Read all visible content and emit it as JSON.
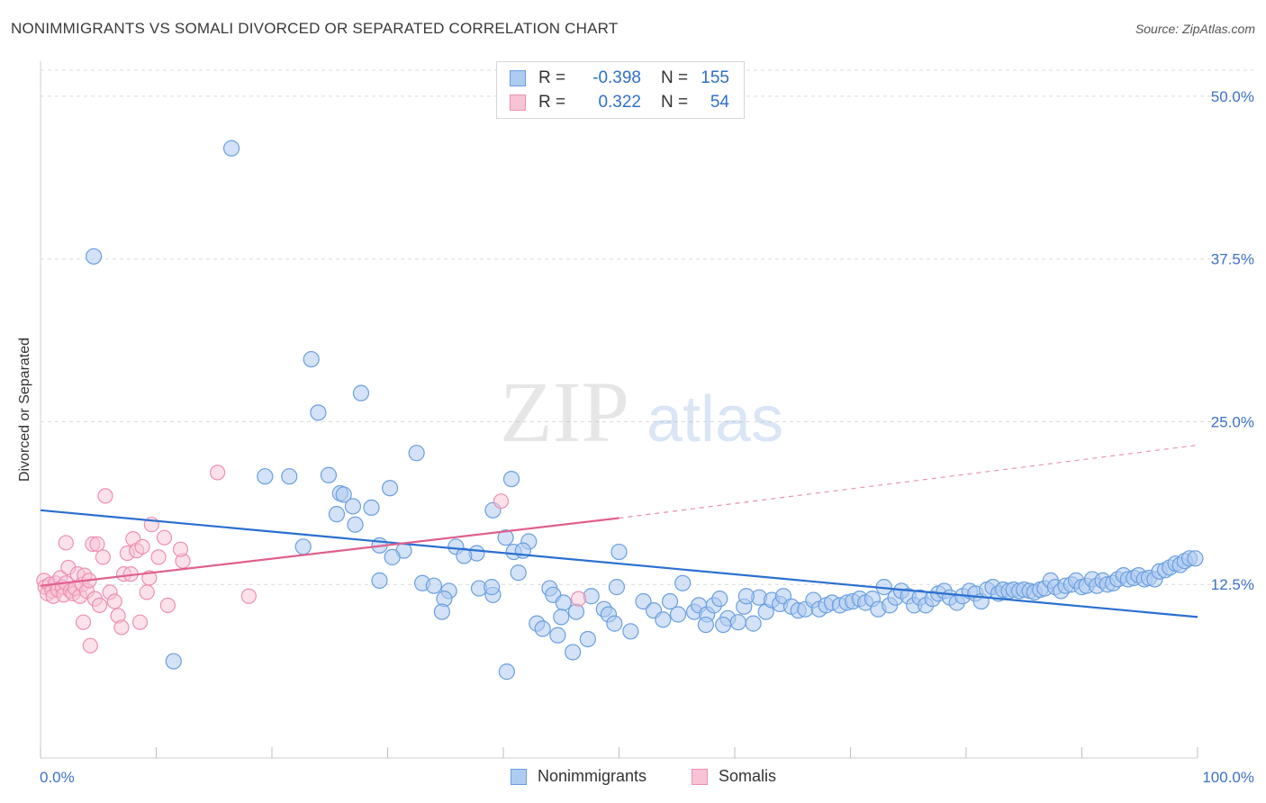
{
  "title": "NONIMMIGRANTS VS SOMALI DIVORCED OR SEPARATED CORRELATION CHART",
  "source": "Source: ZipAtlas.com",
  "watermark": {
    "zip": "ZIP",
    "atlas": "atlas"
  },
  "colors": {
    "blue": "#6a9fe0",
    "blue_fill": "#aecbf1",
    "blue_line": "#2b6fd1",
    "pink": "#ef8fb0",
    "pink_fill": "#f7c3d5",
    "pink_line": "#e0608e",
    "tick_label": "#3d72c7"
  },
  "stats": {
    "r_label": "R =",
    "n_label": "N =",
    "rows": [
      {
        "r": "-0.398",
        "n": "155"
      },
      {
        "r": "0.322",
        "n": "54"
      }
    ]
  },
  "chart_data": {
    "type": "scatter",
    "title": "NONIMMIGRANTS VS SOMALI DIVORCED OR SEPARATED CORRELATION CHART",
    "xlabel": "",
    "ylabel": "Divorced or Separated",
    "xlim": [
      0,
      100
    ],
    "ylim": [
      0,
      52
    ],
    "x_tick_labels": [
      "0.0%",
      "100.0%"
    ],
    "y_ticks": [
      12.5,
      25.0,
      37.5,
      50.0
    ],
    "y_tick_labels": [
      "12.5%",
      "25.0%",
      "37.5%",
      "50.0%"
    ],
    "grid": true,
    "legend_placement": "bottom-center",
    "series": [
      {
        "name": "Nonimmigrants",
        "color": "#6a9fe0",
        "trend": {
          "x0": 0,
          "y0": 18.2,
          "x1": 100,
          "y1": 10.0
        },
        "points": [
          [
            16.5,
            46
          ],
          [
            4.6,
            37.7
          ],
          [
            23.4,
            29.8
          ],
          [
            27.7,
            27.2
          ],
          [
            24.0,
            25.7
          ],
          [
            32.5,
            22.6
          ],
          [
            40.7,
            20.6
          ],
          [
            19.4,
            20.8
          ],
          [
            21.5,
            20.8
          ],
          [
            24.9,
            20.9
          ],
          [
            25.9,
            19.5
          ],
          [
            26.2,
            19.4
          ],
          [
            30.2,
            19.9
          ],
          [
            27.0,
            18.5
          ],
          [
            28.6,
            18.4
          ],
          [
            25.6,
            17.9
          ],
          [
            39.1,
            18.2
          ],
          [
            27.2,
            17.1
          ],
          [
            40.2,
            16.1
          ],
          [
            42.2,
            15.8
          ],
          [
            22.7,
            15.4
          ],
          [
            29.3,
            15.5
          ],
          [
            31.4,
            15.1
          ],
          [
            35.9,
            15.4
          ],
          [
            37.7,
            14.9
          ],
          [
            40.9,
            15.0
          ],
          [
            41.7,
            15.1
          ],
          [
            50.0,
            15.0
          ],
          [
            30.4,
            14.6
          ],
          [
            36.6,
            14.7
          ],
          [
            41.3,
            13.4
          ],
          [
            29.3,
            12.8
          ],
          [
            33.0,
            12.6
          ],
          [
            34.0,
            12.4
          ],
          [
            35.3,
            12.0
          ],
          [
            37.9,
            12.2
          ],
          [
            39.1,
            11.7
          ],
          [
            34.9,
            11.4
          ],
          [
            34.7,
            10.4
          ],
          [
            44.0,
            12.2
          ],
          [
            44.3,
            11.7
          ],
          [
            45.2,
            11.1
          ],
          [
            47.6,
            11.6
          ],
          [
            48.7,
            10.6
          ],
          [
            46.3,
            10.4
          ],
          [
            49.1,
            10.2
          ],
          [
            42.9,
            9.5
          ],
          [
            43.4,
            9.1
          ],
          [
            44.7,
            8.6
          ],
          [
            47.3,
            8.3
          ],
          [
            49.6,
            9.5
          ],
          [
            51.0,
            8.9
          ],
          [
            49.8,
            12.3
          ],
          [
            52.1,
            11.2
          ],
          [
            53.0,
            10.5
          ],
          [
            53.8,
            9.8
          ],
          [
            54.4,
            11.2
          ],
          [
            55.1,
            10.2
          ],
          [
            55.5,
            12.6
          ],
          [
            56.5,
            10.4
          ],
          [
            56.9,
            10.9
          ],
          [
            57.6,
            10.2
          ],
          [
            58.2,
            10.9
          ],
          [
            58.7,
            11.4
          ],
          [
            59.4,
            9.9
          ],
          [
            60.3,
            9.6
          ],
          [
            60.8,
            10.8
          ],
          [
            61.6,
            9.5
          ],
          [
            62.1,
            11.5
          ],
          [
            62.7,
            10.4
          ],
          [
            63.2,
            11.3
          ],
          [
            63.9,
            11.0
          ],
          [
            64.2,
            11.6
          ],
          [
            64.9,
            10.8
          ],
          [
            65.5,
            10.5
          ],
          [
            66.1,
            10.6
          ],
          [
            66.8,
            11.3
          ],
          [
            67.3,
            10.6
          ],
          [
            67.9,
            10.9
          ],
          [
            68.4,
            11.1
          ],
          [
            69.1,
            10.9
          ],
          [
            69.7,
            11.1
          ],
          [
            70.2,
            11.2
          ],
          [
            70.8,
            11.4
          ],
          [
            71.3,
            11.1
          ],
          [
            71.9,
            11.4
          ],
          [
            72.4,
            10.6
          ],
          [
            72.9,
            12.3
          ],
          [
            73.4,
            10.9
          ],
          [
            73.9,
            11.5
          ],
          [
            74.4,
            12.0
          ],
          [
            75.0,
            11.6
          ],
          [
            75.5,
            10.9
          ],
          [
            76.0,
            11.5
          ],
          [
            76.5,
            10.9
          ],
          [
            77.1,
            11.4
          ],
          [
            77.6,
            11.8
          ],
          [
            78.1,
            12.0
          ],
          [
            78.6,
            11.5
          ],
          [
            79.2,
            11.1
          ],
          [
            79.7,
            11.6
          ],
          [
            80.3,
            12.0
          ],
          [
            80.8,
            11.8
          ],
          [
            81.3,
            11.2
          ],
          [
            81.8,
            12.1
          ],
          [
            82.3,
            12.3
          ],
          [
            82.8,
            11.8
          ],
          [
            83.2,
            12.1
          ],
          [
            83.7,
            12.0
          ],
          [
            84.1,
            12.1
          ],
          [
            84.6,
            12.0
          ],
          [
            85.0,
            12.1
          ],
          [
            85.5,
            12.0
          ],
          [
            85.9,
            11.9
          ],
          [
            86.4,
            12.1
          ],
          [
            86.8,
            12.2
          ],
          [
            87.3,
            12.8
          ],
          [
            87.7,
            12.3
          ],
          [
            88.2,
            12.0
          ],
          [
            88.6,
            12.4
          ],
          [
            89.1,
            12.5
          ],
          [
            89.5,
            12.8
          ],
          [
            90.0,
            12.3
          ],
          [
            90.4,
            12.4
          ],
          [
            90.9,
            12.9
          ],
          [
            91.3,
            12.4
          ],
          [
            91.8,
            12.8
          ],
          [
            92.2,
            12.5
          ],
          [
            92.7,
            12.6
          ],
          [
            93.1,
            12.9
          ],
          [
            93.6,
            13.2
          ],
          [
            94.0,
            12.9
          ],
          [
            94.5,
            13.0
          ],
          [
            94.9,
            13.2
          ],
          [
            95.4,
            12.9
          ],
          [
            95.8,
            13.0
          ],
          [
            96.3,
            12.9
          ],
          [
            96.7,
            13.5
          ],
          [
            97.2,
            13.6
          ],
          [
            97.6,
            13.8
          ],
          [
            98.1,
            14.1
          ],
          [
            98.5,
            14.0
          ],
          [
            98.9,
            14.3
          ],
          [
            99.3,
            14.5
          ],
          [
            99.8,
            14.5
          ],
          [
            11.5,
            6.6
          ],
          [
            40.3,
            5.8
          ],
          [
            46.0,
            7.3
          ],
          [
            45.0,
            10.0
          ],
          [
            39.0,
            12.3
          ],
          [
            57.5,
            9.4
          ],
          [
            59.0,
            9.4
          ],
          [
            61.0,
            11.6
          ]
        ]
      },
      {
        "name": "Somalis",
        "color": "#ef8fb0",
        "trend": {
          "x0": 0,
          "y0": 12.4,
          "x1": 50,
          "y1": 17.6,
          "dashed_to_x": 100,
          "dashed_to_y": 23.2
        },
        "points": [
          [
            0.3,
            12.8
          ],
          [
            0.4,
            12.3
          ],
          [
            0.6,
            11.8
          ],
          [
            0.8,
            12.5
          ],
          [
            1.0,
            12.0
          ],
          [
            1.1,
            11.6
          ],
          [
            1.3,
            12.6
          ],
          [
            1.5,
            12.1
          ],
          [
            1.7,
            13.0
          ],
          [
            1.9,
            12.3
          ],
          [
            2.0,
            11.7
          ],
          [
            2.2,
            12.6
          ],
          [
            2.4,
            13.8
          ],
          [
            2.6,
            12.0
          ],
          [
            2.8,
            11.8
          ],
          [
            3.0,
            12.2
          ],
          [
            3.2,
            13.3
          ],
          [
            3.4,
            11.6
          ],
          [
            3.6,
            12.5
          ],
          [
            3.8,
            13.2
          ],
          [
            4.0,
            12.0
          ],
          [
            4.2,
            12.8
          ],
          [
            4.5,
            15.6
          ],
          [
            4.7,
            11.4
          ],
          [
            4.9,
            15.6
          ],
          [
            5.1,
            10.9
          ],
          [
            5.4,
            14.6
          ],
          [
            5.6,
            19.3
          ],
          [
            6.0,
            11.9
          ],
          [
            6.4,
            11.2
          ],
          [
            6.7,
            10.1
          ],
          [
            7.0,
            9.2
          ],
          [
            7.2,
            13.3
          ],
          [
            7.5,
            14.9
          ],
          [
            7.8,
            13.3
          ],
          [
            8.0,
            16.0
          ],
          [
            8.3,
            15.1
          ],
          [
            8.6,
            9.6
          ],
          [
            8.8,
            15.4
          ],
          [
            9.2,
            11.9
          ],
          [
            9.4,
            13.0
          ],
          [
            9.6,
            17.1
          ],
          [
            10.2,
            14.6
          ],
          [
            10.7,
            16.1
          ],
          [
            11.0,
            10.9
          ],
          [
            12.3,
            14.3
          ],
          [
            12.1,
            15.2
          ],
          [
            15.3,
            21.1
          ],
          [
            18.0,
            11.6
          ],
          [
            2.2,
            15.7
          ],
          [
            3.7,
            9.6
          ],
          [
            4.3,
            7.8
          ],
          [
            46.5,
            11.4
          ],
          [
            39.8,
            18.9
          ]
        ]
      }
    ]
  },
  "legend": {
    "items": [
      "Nonimmigrants",
      "Somalis"
    ]
  }
}
